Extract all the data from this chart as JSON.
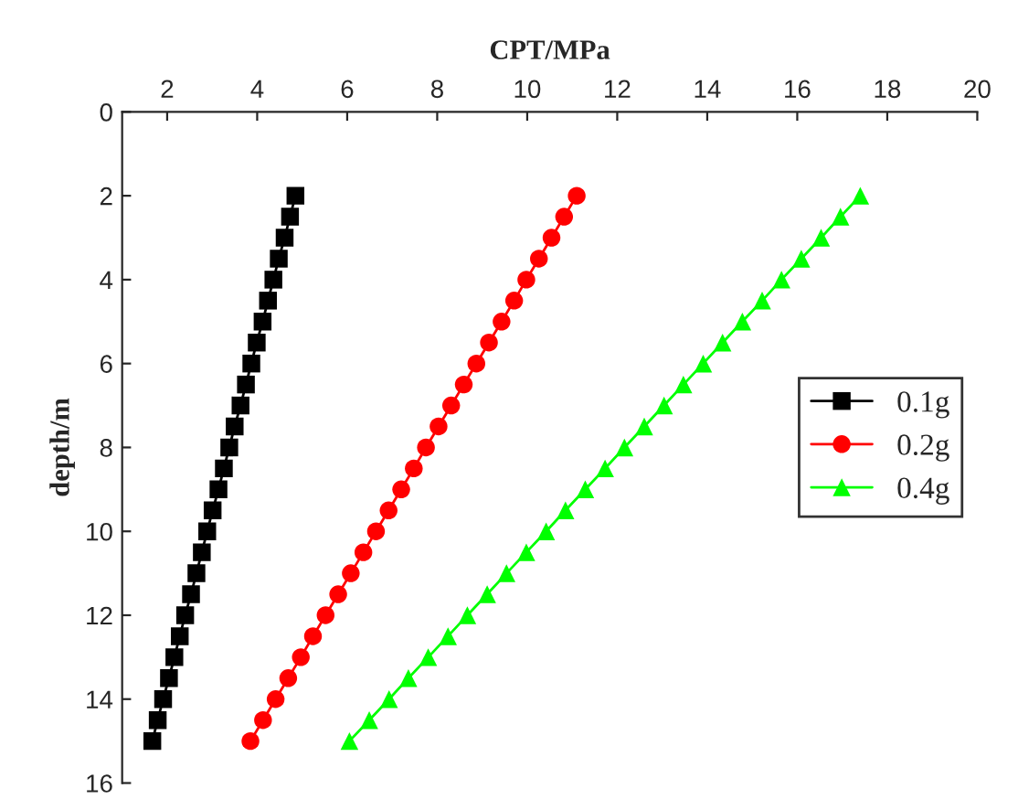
{
  "chart_data": {
    "type": "line",
    "xlabel": "CPT/MPa",
    "ylabel": "depth/m",
    "xlim": [
      1,
      20
    ],
    "xticks": [
      2,
      4,
      6,
      8,
      10,
      12,
      14,
      16,
      18,
      20
    ],
    "ylim": [
      16,
      0
    ],
    "yticks": [
      0,
      2,
      4,
      6,
      8,
      10,
      12,
      14,
      16
    ],
    "grid": false,
    "legend": "right",
    "line_style": "solid",
    "series": [
      {
        "name": "0.1g",
        "color": "#000000",
        "marker": "square",
        "x": [
          4.85,
          4.73,
          4.61,
          4.48,
          4.36,
          4.24,
          4.12,
          3.99,
          3.87,
          3.75,
          3.63,
          3.5,
          3.38,
          3.26,
          3.14,
          3.01,
          2.89,
          2.77,
          2.65,
          2.53,
          2.4,
          2.28,
          2.16,
          2.04,
          1.91,
          1.79,
          1.67
        ],
        "values": [
          2,
          2.5,
          3,
          3.5,
          4,
          4.5,
          5,
          5.5,
          6,
          6.5,
          7,
          7.5,
          8,
          8.5,
          9,
          9.5,
          10,
          10.5,
          11,
          11.5,
          12,
          12.5,
          13,
          13.5,
          14,
          14.5,
          15
        ]
      },
      {
        "name": "0.2g",
        "color": "#ff0000",
        "marker": "circle",
        "x": [
          11.1,
          10.82,
          10.54,
          10.26,
          9.98,
          9.71,
          9.43,
          9.15,
          8.87,
          8.59,
          8.31,
          8.03,
          7.75,
          7.48,
          7.2,
          6.92,
          6.64,
          6.36,
          6.08,
          5.8,
          5.52,
          5.24,
          4.97,
          4.69,
          4.41,
          4.13,
          3.85
        ],
        "values": [
          2,
          2.5,
          3,
          3.5,
          4,
          4.5,
          5,
          5.5,
          6,
          6.5,
          7,
          7.5,
          8,
          8.5,
          9,
          9.5,
          10,
          10.5,
          11,
          11.5,
          12,
          12.5,
          13,
          13.5,
          14,
          14.5,
          15
        ]
      },
      {
        "name": "0.4g",
        "color": "#00ff00",
        "marker": "triangle",
        "x": [
          17.4,
          16.96,
          16.53,
          16.09,
          15.65,
          15.22,
          14.78,
          14.34,
          13.91,
          13.47,
          13.04,
          12.6,
          12.16,
          11.73,
          11.29,
          10.85,
          10.42,
          9.98,
          9.54,
          9.11,
          8.67,
          8.24,
          7.8,
          7.36,
          6.93,
          6.49,
          6.05
        ],
        "values": [
          2,
          2.5,
          3,
          3.5,
          4,
          4.5,
          5,
          5.5,
          6,
          6.5,
          7,
          7.5,
          8,
          8.5,
          9,
          9.5,
          10,
          10.5,
          11,
          11.5,
          12,
          12.5,
          13,
          13.5,
          14,
          14.5,
          15
        ]
      }
    ]
  }
}
